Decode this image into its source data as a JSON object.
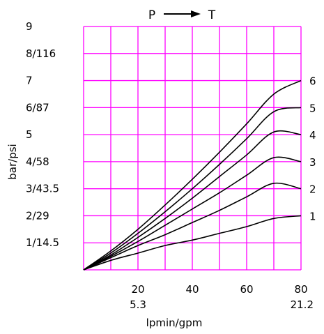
{
  "chart_data": {
    "type": "line",
    "title": {
      "from": "P",
      "to": "T"
    },
    "xlabel": "lpmin/gpm",
    "ylabel": "bar/psi",
    "xlim": [
      0,
      80
    ],
    "ylim": [
      0,
      9
    ],
    "grid": true,
    "grid_color": "#ff00ff",
    "x_ticks": [
      {
        "value": 20,
        "label": "20",
        "sublabel": "5.3"
      },
      {
        "value": 40,
        "label": "40",
        "sublabel": ""
      },
      {
        "value": 60,
        "label": "60",
        "sublabel": ""
      },
      {
        "value": 80,
        "label": "80",
        "sublabel": "21.2"
      }
    ],
    "y_ticks": [
      {
        "value": 1,
        "label": "1/14.5"
      },
      {
        "value": 2,
        "label": "2/29"
      },
      {
        "value": 3,
        "label": "3/43.5"
      },
      {
        "value": 4,
        "label": "4/58"
      },
      {
        "value": 5,
        "label": "5"
      },
      {
        "value": 6,
        "label": "6/87"
      },
      {
        "value": 7,
        "label": "7"
      },
      {
        "value": 8,
        "label": "8/116"
      },
      {
        "value": 9,
        "label": "9"
      }
    ],
    "series": [
      {
        "name": "1",
        "x": [
          0,
          10,
          20,
          30,
          40,
          50,
          60,
          70,
          80
        ],
        "y": [
          0,
          0.35,
          0.62,
          0.9,
          1.1,
          1.35,
          1.6,
          1.9,
          2.0
        ]
      },
      {
        "name": "2",
        "x": [
          0,
          10,
          20,
          30,
          40,
          50,
          60,
          70,
          80
        ],
        "y": [
          0,
          0.45,
          0.9,
          1.3,
          1.75,
          2.2,
          2.7,
          3.2,
          3.0
        ]
      },
      {
        "name": "3",
        "x": [
          0,
          10,
          20,
          30,
          40,
          50,
          60,
          70,
          80
        ],
        "y": [
          0,
          0.5,
          1.05,
          1.65,
          2.25,
          2.85,
          3.5,
          4.15,
          4.0
        ]
      },
      {
        "name": "4",
        "x": [
          0,
          10,
          20,
          30,
          40,
          50,
          60,
          70,
          80
        ],
        "y": [
          0,
          0.55,
          1.2,
          1.9,
          2.65,
          3.45,
          4.25,
          5.1,
          5.0
        ]
      },
      {
        "name": "5",
        "x": [
          0,
          10,
          20,
          30,
          40,
          50,
          60,
          70,
          80
        ],
        "y": [
          0,
          0.62,
          1.35,
          2.15,
          3.0,
          3.9,
          4.85,
          5.85,
          6.0
        ]
      },
      {
        "name": "6",
        "x": [
          0,
          10,
          20,
          30,
          40,
          50,
          60,
          70,
          80
        ],
        "y": [
          0,
          0.7,
          1.5,
          2.4,
          3.35,
          4.35,
          5.4,
          6.5,
          7.0
        ]
      }
    ]
  }
}
